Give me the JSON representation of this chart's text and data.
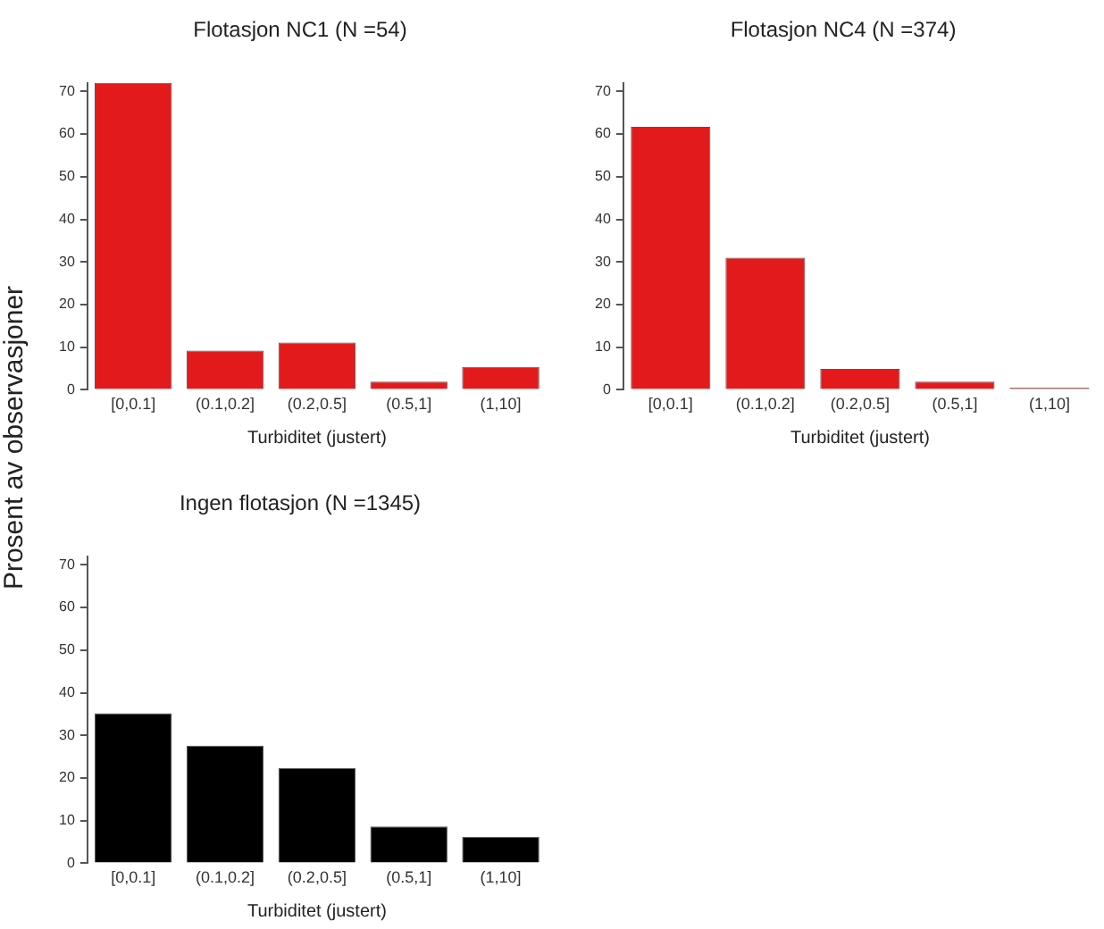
{
  "chart_data": [
    {
      "type": "bar",
      "title": "Flotasjon NC1 (N =54)",
      "xlabel": "Turbiditet (justert)",
      "categories": [
        "[0,0.1]",
        "(0.1,0.2]",
        "(0.2,0.5]",
        "(0.5,1]",
        "(1,10]"
      ],
      "values": [
        72,
        9.2,
        11.1,
        1.9,
        5.4
      ],
      "color": "#e31a1c",
      "ylim": [
        0,
        72
      ],
      "yticks": [
        0,
        10,
        20,
        30,
        40,
        50,
        60,
        70
      ],
      "grid": false
    },
    {
      "type": "bar",
      "title": "Flotasjon NC4 (N =374)",
      "xlabel": "Turbiditet (justert)",
      "categories": [
        "[0,0.1]",
        "(0.1,0.2]",
        "(0.2,0.5]",
        "(0.5,1]",
        "(1,10]"
      ],
      "values": [
        61.7,
        31,
        4.9,
        1.9,
        0.5
      ],
      "color": "#e31a1c",
      "ylim": [
        0,
        72
      ],
      "yticks": [
        0,
        10,
        20,
        30,
        40,
        50,
        60,
        70
      ],
      "grid": false
    },
    {
      "type": "bar",
      "title": "Ingen flotasjon (N =1345)",
      "xlabel": "Turbiditet (justert)",
      "ylabel": "Prosent av observasjoner",
      "categories": [
        "[0,0.1]",
        "(0.1,0.2]",
        "(0.2,0.5]",
        "(0.5,1]",
        "(1,10]"
      ],
      "values": [
        35.2,
        27.6,
        22.3,
        8.6,
        6.2
      ],
      "color": "#000000",
      "ylim": [
        0,
        72
      ],
      "yticks": [
        0,
        10,
        20,
        30,
        40,
        50,
        60,
        70
      ],
      "grid": false
    }
  ]
}
